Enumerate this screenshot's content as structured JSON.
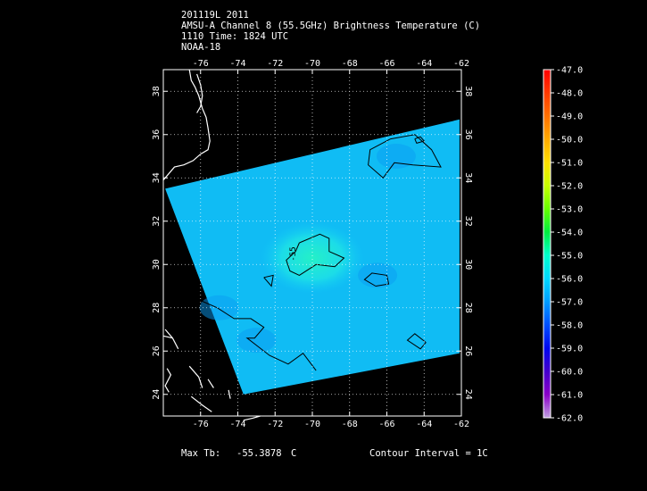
{
  "header": {
    "line1": "201119L 2011",
    "line2": "AMSU-A Channel 8 (55.5GHz) Brightness Temperature (C)",
    "line3": "1110 Time: 1824 UTC",
    "line4": "NOAA-18"
  },
  "footer": {
    "max_label": "Max Tb:",
    "max_value": "-55.3878",
    "max_unit": "C",
    "contour_label": "Contour Interval = 1C"
  },
  "chart_data": {
    "type": "heatmap",
    "xlim": [
      -78,
      -62
    ],
    "ylim": [
      23,
      39
    ],
    "x_ticks": [
      -76,
      -74,
      -72,
      -70,
      -68,
      -66,
      -64,
      -62
    ],
    "y_ticks": [
      24,
      26,
      28,
      30,
      32,
      34,
      36,
      38
    ],
    "grid": true,
    "swath_corners": [
      {
        "lon": -77.9,
        "lat": 33.5
      },
      {
        "lon": -62.1,
        "lat": 36.7
      },
      {
        "lon": -62.1,
        "lat": 25.9
      },
      {
        "lon": -73.7,
        "lat": 24.0
      }
    ],
    "contour_label": "-55",
    "colorbar": {
      "labels": [
        "-47.0",
        "-48.0",
        "-49.0",
        "-50.0",
        "-51.0",
        "-52.0",
        "-53.0",
        "-54.0",
        "-55.0",
        "-56.0",
        "-57.0",
        "-58.0",
        "-59.0",
        "-60.0",
        "-61.0",
        "-62.0"
      ],
      "colors": [
        "#ff0000",
        "#ff3a00",
        "#ff7000",
        "#ffaa00",
        "#ffe000",
        "#c8ff00",
        "#66ff00",
        "#00ee40",
        "#00ffcc",
        "#00d8ff",
        "#009cff",
        "#0050ff",
        "#0008ee",
        "#4400cc",
        "#8a00c8",
        "#c0a0e0"
      ],
      "position": "right"
    },
    "coastline_color": "#ffffff",
    "contour_color": "#000000"
  }
}
